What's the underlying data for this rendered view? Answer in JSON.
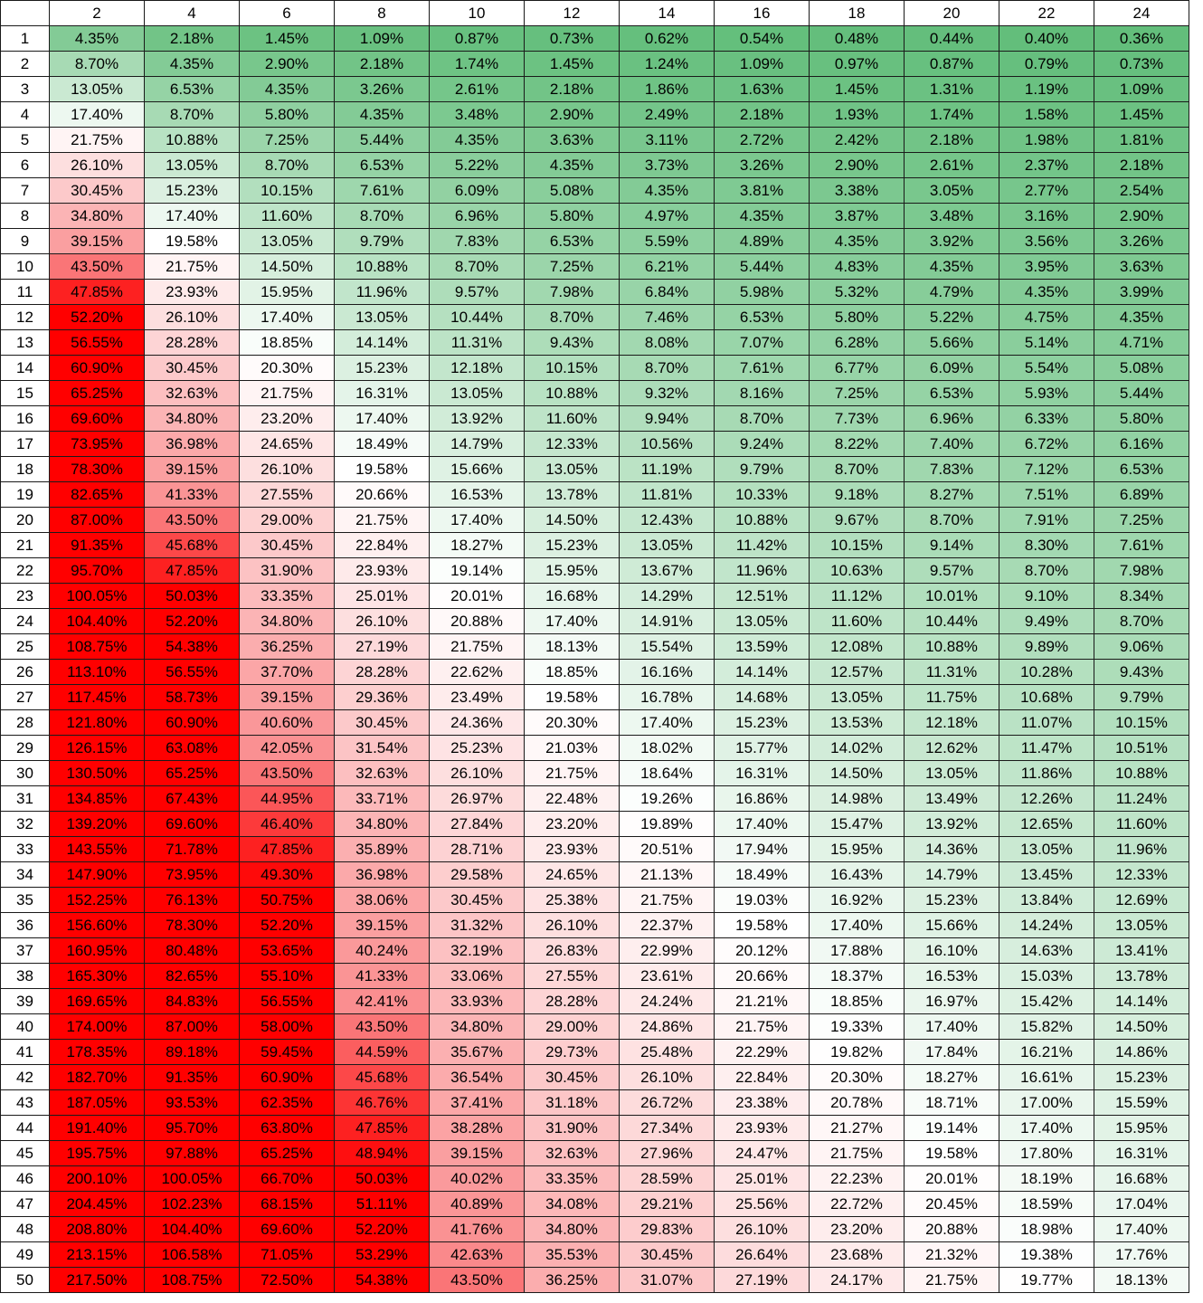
{
  "columns": [
    "2",
    "4",
    "6",
    "8",
    "10",
    "12",
    "14",
    "16",
    "18",
    "20",
    "22",
    "24"
  ],
  "rows": [
    {
      "label": "1",
      "values": [
        "4.35%",
        "2.18%",
        "1.45%",
        "1.09%",
        "0.87%",
        "0.73%",
        "0.62%",
        "0.54%",
        "0.48%",
        "0.44%",
        "0.40%",
        "0.36%"
      ]
    },
    {
      "label": "2",
      "values": [
        "8.70%",
        "4.35%",
        "2.90%",
        "2.18%",
        "1.74%",
        "1.45%",
        "1.24%",
        "1.09%",
        "0.97%",
        "0.87%",
        "0.79%",
        "0.73%"
      ]
    },
    {
      "label": "3",
      "values": [
        "13.05%",
        "6.53%",
        "4.35%",
        "3.26%",
        "2.61%",
        "2.18%",
        "1.86%",
        "1.63%",
        "1.45%",
        "1.31%",
        "1.19%",
        "1.09%"
      ]
    },
    {
      "label": "4",
      "values": [
        "17.40%",
        "8.70%",
        "5.80%",
        "4.35%",
        "3.48%",
        "2.90%",
        "2.49%",
        "2.18%",
        "1.93%",
        "1.74%",
        "1.58%",
        "1.45%"
      ]
    },
    {
      "label": "5",
      "values": [
        "21.75%",
        "10.88%",
        "7.25%",
        "5.44%",
        "4.35%",
        "3.63%",
        "3.11%",
        "2.72%",
        "2.42%",
        "2.18%",
        "1.98%",
        "1.81%"
      ]
    },
    {
      "label": "6",
      "values": [
        "26.10%",
        "13.05%",
        "8.70%",
        "6.53%",
        "5.22%",
        "4.35%",
        "3.73%",
        "3.26%",
        "2.90%",
        "2.61%",
        "2.37%",
        "2.18%"
      ]
    },
    {
      "label": "7",
      "values": [
        "30.45%",
        "15.23%",
        "10.15%",
        "7.61%",
        "6.09%",
        "5.08%",
        "4.35%",
        "3.81%",
        "3.38%",
        "3.05%",
        "2.77%",
        "2.54%"
      ]
    },
    {
      "label": "8",
      "values": [
        "34.80%",
        "17.40%",
        "11.60%",
        "8.70%",
        "6.96%",
        "5.80%",
        "4.97%",
        "4.35%",
        "3.87%",
        "3.48%",
        "3.16%",
        "2.90%"
      ]
    },
    {
      "label": "9",
      "values": [
        "39.15%",
        "19.58%",
        "13.05%",
        "9.79%",
        "7.83%",
        "6.53%",
        "5.59%",
        "4.89%",
        "4.35%",
        "3.92%",
        "3.56%",
        "3.26%"
      ]
    },
    {
      "label": "10",
      "values": [
        "43.50%",
        "21.75%",
        "14.50%",
        "10.88%",
        "8.70%",
        "7.25%",
        "6.21%",
        "5.44%",
        "4.83%",
        "4.35%",
        "3.95%",
        "3.63%"
      ]
    },
    {
      "label": "11",
      "values": [
        "47.85%",
        "23.93%",
        "15.95%",
        "11.96%",
        "9.57%",
        "7.98%",
        "6.84%",
        "5.98%",
        "5.32%",
        "4.79%",
        "4.35%",
        "3.99%"
      ]
    },
    {
      "label": "12",
      "values": [
        "52.20%",
        "26.10%",
        "17.40%",
        "13.05%",
        "10.44%",
        "8.70%",
        "7.46%",
        "6.53%",
        "5.80%",
        "5.22%",
        "4.75%",
        "4.35%"
      ]
    },
    {
      "label": "13",
      "values": [
        "56.55%",
        "28.28%",
        "18.85%",
        "14.14%",
        "11.31%",
        "9.43%",
        "8.08%",
        "7.07%",
        "6.28%",
        "5.66%",
        "5.14%",
        "4.71%"
      ]
    },
    {
      "label": "14",
      "values": [
        "60.90%",
        "30.45%",
        "20.30%",
        "15.23%",
        "12.18%",
        "10.15%",
        "8.70%",
        "7.61%",
        "6.77%",
        "6.09%",
        "5.54%",
        "5.08%"
      ]
    },
    {
      "label": "15",
      "values": [
        "65.25%",
        "32.63%",
        "21.75%",
        "16.31%",
        "13.05%",
        "10.88%",
        "9.32%",
        "8.16%",
        "7.25%",
        "6.53%",
        "5.93%",
        "5.44%"
      ]
    },
    {
      "label": "16",
      "values": [
        "69.60%",
        "34.80%",
        "23.20%",
        "17.40%",
        "13.92%",
        "11.60%",
        "9.94%",
        "8.70%",
        "7.73%",
        "6.96%",
        "6.33%",
        "5.80%"
      ]
    },
    {
      "label": "17",
      "values": [
        "73.95%",
        "36.98%",
        "24.65%",
        "18.49%",
        "14.79%",
        "12.33%",
        "10.56%",
        "9.24%",
        "8.22%",
        "7.40%",
        "6.72%",
        "6.16%"
      ]
    },
    {
      "label": "18",
      "values": [
        "78.30%",
        "39.15%",
        "26.10%",
        "19.58%",
        "15.66%",
        "13.05%",
        "11.19%",
        "9.79%",
        "8.70%",
        "7.83%",
        "7.12%",
        "6.53%"
      ]
    },
    {
      "label": "19",
      "values": [
        "82.65%",
        "41.33%",
        "27.55%",
        "20.66%",
        "16.53%",
        "13.78%",
        "11.81%",
        "10.33%",
        "9.18%",
        "8.27%",
        "7.51%",
        "6.89%"
      ]
    },
    {
      "label": "20",
      "values": [
        "87.00%",
        "43.50%",
        "29.00%",
        "21.75%",
        "17.40%",
        "14.50%",
        "12.43%",
        "10.88%",
        "9.67%",
        "8.70%",
        "7.91%",
        "7.25%"
      ]
    },
    {
      "label": "21",
      "values": [
        "91.35%",
        "45.68%",
        "30.45%",
        "22.84%",
        "18.27%",
        "15.23%",
        "13.05%",
        "11.42%",
        "10.15%",
        "9.14%",
        "8.30%",
        "7.61%"
      ]
    },
    {
      "label": "22",
      "values": [
        "95.70%",
        "47.85%",
        "31.90%",
        "23.93%",
        "19.14%",
        "15.95%",
        "13.67%",
        "11.96%",
        "10.63%",
        "9.57%",
        "8.70%",
        "7.98%"
      ]
    },
    {
      "label": "23",
      "values": [
        "100.05%",
        "50.03%",
        "33.35%",
        "25.01%",
        "20.01%",
        "16.68%",
        "14.29%",
        "12.51%",
        "11.12%",
        "10.01%",
        "9.10%",
        "8.34%"
      ]
    },
    {
      "label": "24",
      "values": [
        "104.40%",
        "52.20%",
        "34.80%",
        "26.10%",
        "20.88%",
        "17.40%",
        "14.91%",
        "13.05%",
        "11.60%",
        "10.44%",
        "9.49%",
        "8.70%"
      ]
    },
    {
      "label": "25",
      "values": [
        "108.75%",
        "54.38%",
        "36.25%",
        "27.19%",
        "21.75%",
        "18.13%",
        "15.54%",
        "13.59%",
        "12.08%",
        "10.88%",
        "9.89%",
        "9.06%"
      ]
    },
    {
      "label": "26",
      "values": [
        "113.10%",
        "56.55%",
        "37.70%",
        "28.28%",
        "22.62%",
        "18.85%",
        "16.16%",
        "14.14%",
        "12.57%",
        "11.31%",
        "10.28%",
        "9.43%"
      ]
    },
    {
      "label": "27",
      "values": [
        "117.45%",
        "58.73%",
        "39.15%",
        "29.36%",
        "23.49%",
        "19.58%",
        "16.78%",
        "14.68%",
        "13.05%",
        "11.75%",
        "10.68%",
        "9.79%"
      ]
    },
    {
      "label": "28",
      "values": [
        "121.80%",
        "60.90%",
        "40.60%",
        "30.45%",
        "24.36%",
        "20.30%",
        "17.40%",
        "15.23%",
        "13.53%",
        "12.18%",
        "11.07%",
        "10.15%"
      ]
    },
    {
      "label": "29",
      "values": [
        "126.15%",
        "63.08%",
        "42.05%",
        "31.54%",
        "25.23%",
        "21.03%",
        "18.02%",
        "15.77%",
        "14.02%",
        "12.62%",
        "11.47%",
        "10.51%"
      ]
    },
    {
      "label": "30",
      "values": [
        "130.50%",
        "65.25%",
        "43.50%",
        "32.63%",
        "26.10%",
        "21.75%",
        "18.64%",
        "16.31%",
        "14.50%",
        "13.05%",
        "11.86%",
        "10.88%"
      ]
    },
    {
      "label": "31",
      "values": [
        "134.85%",
        "67.43%",
        "44.95%",
        "33.71%",
        "26.97%",
        "22.48%",
        "19.26%",
        "16.86%",
        "14.98%",
        "13.49%",
        "12.26%",
        "11.24%"
      ]
    },
    {
      "label": "32",
      "values": [
        "139.20%",
        "69.60%",
        "46.40%",
        "34.80%",
        "27.84%",
        "23.20%",
        "19.89%",
        "17.40%",
        "15.47%",
        "13.92%",
        "12.65%",
        "11.60%"
      ]
    },
    {
      "label": "33",
      "values": [
        "143.55%",
        "71.78%",
        "47.85%",
        "35.89%",
        "28.71%",
        "23.93%",
        "20.51%",
        "17.94%",
        "15.95%",
        "14.36%",
        "13.05%",
        "11.96%"
      ]
    },
    {
      "label": "34",
      "values": [
        "147.90%",
        "73.95%",
        "49.30%",
        "36.98%",
        "29.58%",
        "24.65%",
        "21.13%",
        "18.49%",
        "16.43%",
        "14.79%",
        "13.45%",
        "12.33%"
      ]
    },
    {
      "label": "35",
      "values": [
        "152.25%",
        "76.13%",
        "50.75%",
        "38.06%",
        "30.45%",
        "25.38%",
        "21.75%",
        "19.03%",
        "16.92%",
        "15.23%",
        "13.84%",
        "12.69%"
      ]
    },
    {
      "label": "36",
      "values": [
        "156.60%",
        "78.30%",
        "52.20%",
        "39.15%",
        "31.32%",
        "26.10%",
        "22.37%",
        "19.58%",
        "17.40%",
        "15.66%",
        "14.24%",
        "13.05%"
      ]
    },
    {
      "label": "37",
      "values": [
        "160.95%",
        "80.48%",
        "53.65%",
        "40.24%",
        "32.19%",
        "26.83%",
        "22.99%",
        "20.12%",
        "17.88%",
        "16.10%",
        "14.63%",
        "13.41%"
      ]
    },
    {
      "label": "38",
      "values": [
        "165.30%",
        "82.65%",
        "55.10%",
        "41.33%",
        "33.06%",
        "27.55%",
        "23.61%",
        "20.66%",
        "18.37%",
        "16.53%",
        "15.03%",
        "13.78%"
      ]
    },
    {
      "label": "39",
      "values": [
        "169.65%",
        "84.83%",
        "56.55%",
        "42.41%",
        "33.93%",
        "28.28%",
        "24.24%",
        "21.21%",
        "18.85%",
        "16.97%",
        "15.42%",
        "14.14%"
      ]
    },
    {
      "label": "40",
      "values": [
        "174.00%",
        "87.00%",
        "58.00%",
        "43.50%",
        "34.80%",
        "29.00%",
        "24.86%",
        "21.75%",
        "19.33%",
        "17.40%",
        "15.82%",
        "14.50%"
      ]
    },
    {
      "label": "41",
      "values": [
        "178.35%",
        "89.18%",
        "59.45%",
        "44.59%",
        "35.67%",
        "29.73%",
        "25.48%",
        "22.29%",
        "19.82%",
        "17.84%",
        "16.21%",
        "14.86%"
      ]
    },
    {
      "label": "42",
      "values": [
        "182.70%",
        "91.35%",
        "60.90%",
        "45.68%",
        "36.54%",
        "30.45%",
        "26.10%",
        "22.84%",
        "20.30%",
        "18.27%",
        "16.61%",
        "15.23%"
      ]
    },
    {
      "label": "43",
      "values": [
        "187.05%",
        "93.53%",
        "62.35%",
        "46.76%",
        "37.41%",
        "31.18%",
        "26.72%",
        "23.38%",
        "20.78%",
        "18.71%",
        "17.00%",
        "15.59%"
      ]
    },
    {
      "label": "44",
      "values": [
        "191.40%",
        "95.70%",
        "63.80%",
        "47.85%",
        "38.28%",
        "31.90%",
        "27.34%",
        "23.93%",
        "21.27%",
        "19.14%",
        "17.40%",
        "15.95%"
      ]
    },
    {
      "label": "45",
      "values": [
        "195.75%",
        "97.88%",
        "65.25%",
        "48.94%",
        "39.15%",
        "32.63%",
        "27.96%",
        "24.47%",
        "21.75%",
        "19.58%",
        "17.80%",
        "16.31%"
      ]
    },
    {
      "label": "46",
      "values": [
        "200.10%",
        "100.05%",
        "66.70%",
        "50.03%",
        "40.02%",
        "33.35%",
        "28.59%",
        "25.01%",
        "22.23%",
        "20.01%",
        "18.19%",
        "16.68%"
      ]
    },
    {
      "label": "47",
      "values": [
        "204.45%",
        "102.23%",
        "68.15%",
        "51.11%",
        "40.89%",
        "34.08%",
        "29.21%",
        "25.56%",
        "22.72%",
        "20.45%",
        "18.59%",
        "17.04%"
      ]
    },
    {
      "label": "48",
      "values": [
        "208.80%",
        "104.40%",
        "69.60%",
        "52.20%",
        "41.76%",
        "34.80%",
        "29.83%",
        "26.10%",
        "23.20%",
        "20.88%",
        "18.98%",
        "17.40%"
      ]
    },
    {
      "label": "49",
      "values": [
        "213.15%",
        "106.58%",
        "71.05%",
        "53.29%",
        "42.63%",
        "35.53%",
        "30.45%",
        "26.64%",
        "23.68%",
        "21.32%",
        "19.38%",
        "17.76%"
      ]
    },
    {
      "label": "50",
      "values": [
        "217.50%",
        "108.75%",
        "72.50%",
        "54.38%",
        "43.50%",
        "36.25%",
        "31.07%",
        "27.19%",
        "24.17%",
        "21.75%",
        "19.77%",
        "18.13%"
      ]
    }
  ],
  "color_scale": {
    "low_color": "#63be7b",
    "mid_color": "#ffffff",
    "high_color": "#f8696b",
    "saturated_color": "#ff0000",
    "low_value": 0.36,
    "mid_value": 19.58,
    "high_value": 50
  }
}
